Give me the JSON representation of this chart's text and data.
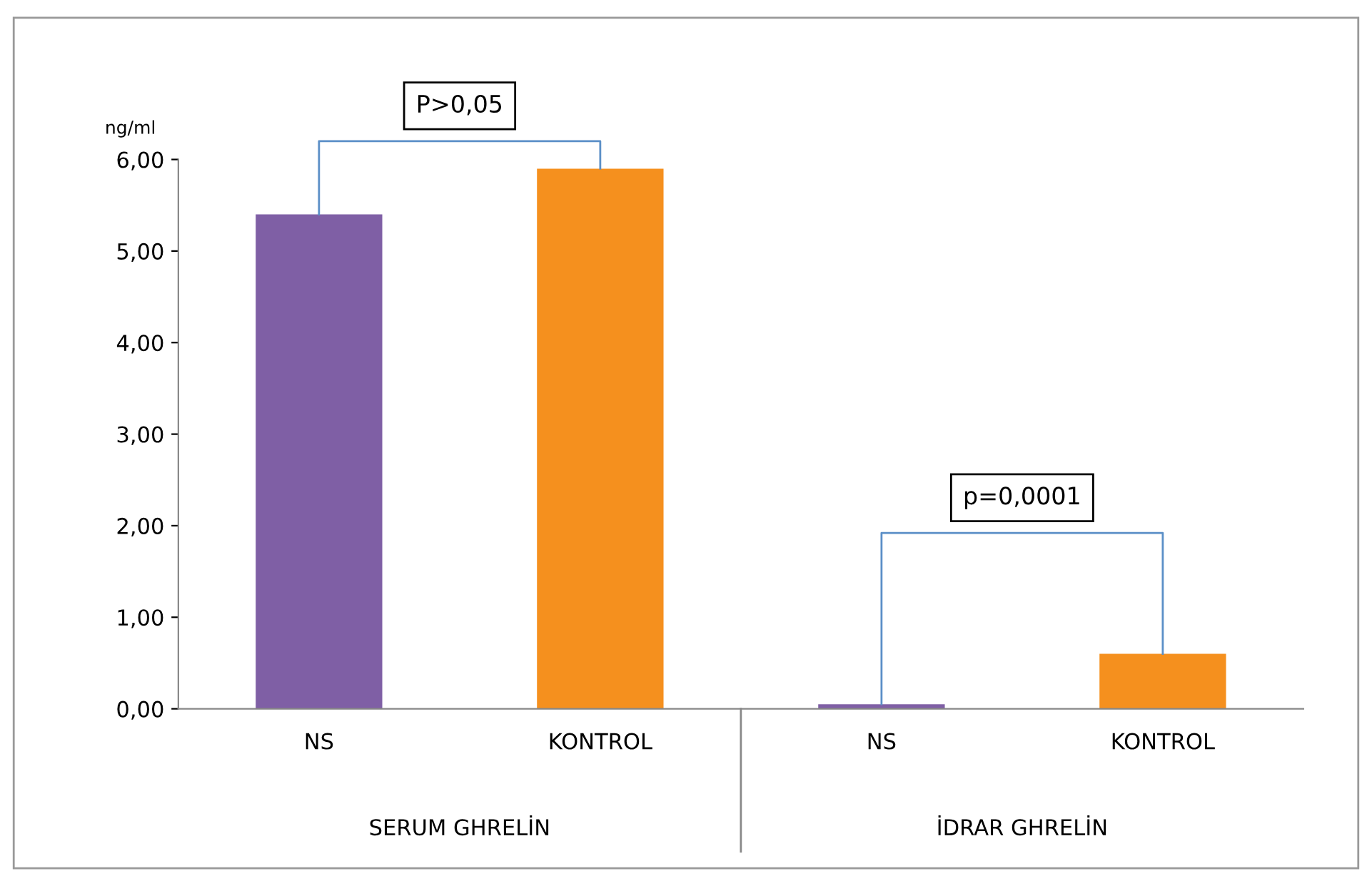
{
  "chart_data": {
    "type": "bar",
    "ylabel": "ng/ml",
    "categories": [
      "NS",
      "KONTROL",
      "NS",
      "KONTROL"
    ],
    "values": [
      5.4,
      5.9,
      0.05,
      0.6
    ],
    "colors": [
      "#7f5fa5",
      "#f5901e",
      "#7f5fa5",
      "#f5901e"
    ],
    "ylim": [
      0,
      6
    ],
    "yticks": [
      {
        "value": 0,
        "label": "0,00"
      },
      {
        "value": 1,
        "label": "1,00"
      },
      {
        "value": 2,
        "label": "2,00"
      },
      {
        "value": 3,
        "label": "3,00"
      },
      {
        "value": 4,
        "label": "4,00"
      },
      {
        "value": 5,
        "label": "5,00"
      },
      {
        "value": 6,
        "label": "6,00"
      }
    ],
    "grid": false,
    "annotations": [
      "P>0,05",
      "p=0,0001",
      "SERUM GHRELİN",
      "İDRAR GHRELİN"
    ]
  }
}
